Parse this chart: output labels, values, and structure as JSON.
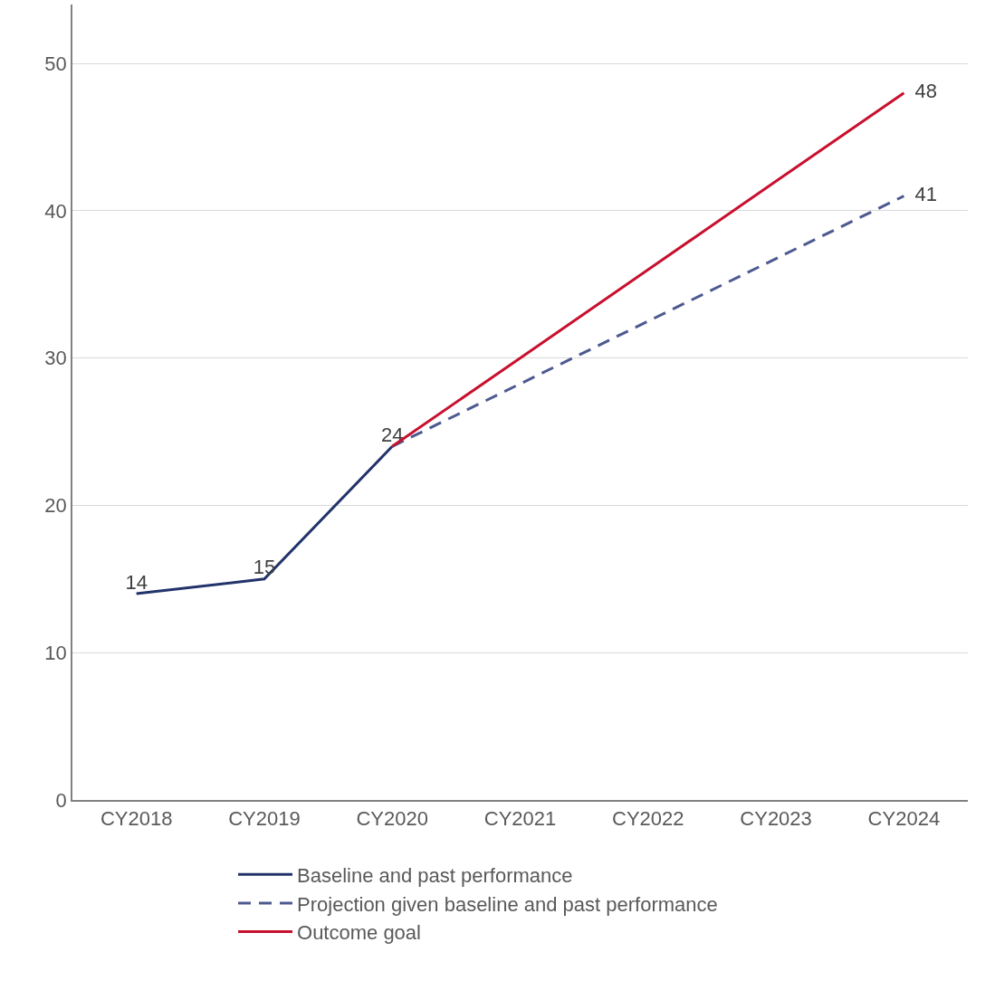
{
  "chart_data": {
    "type": "line",
    "categories": [
      "CY2018",
      "CY2019",
      "CY2020",
      "CY2021",
      "CY2022",
      "CY2023",
      "CY2024"
    ],
    "series": [
      {
        "name": "Baseline and past performance",
        "color": "#22336b",
        "line_style": "solid",
        "values": [
          14,
          15,
          24,
          null,
          null,
          null,
          null
        ],
        "value_labels": [
          "14",
          "15",
          "24",
          null,
          null,
          null,
          null
        ]
      },
      {
        "name": "Projection given baseline and past performance",
        "color": "#4d5a90",
        "line_style": "dashed",
        "values": [
          null,
          null,
          24,
          28.25,
          32.5,
          36.75,
          41
        ],
        "value_labels": [
          null,
          null,
          null,
          null,
          null,
          null,
          "41"
        ]
      },
      {
        "name": "Outcome goal",
        "color": "#c8102e",
        "line_style": "solid",
        "values": [
          null,
          null,
          24,
          30,
          36,
          42,
          48
        ],
        "value_labels": [
          null,
          null,
          null,
          null,
          null,
          null,
          "48"
        ]
      }
    ],
    "ylim": [
      0,
      54
    ],
    "yticks": [
      0,
      10,
      20,
      30,
      40,
      50
    ],
    "grid": "y",
    "legend": "bottom",
    "marker": "none"
  }
}
